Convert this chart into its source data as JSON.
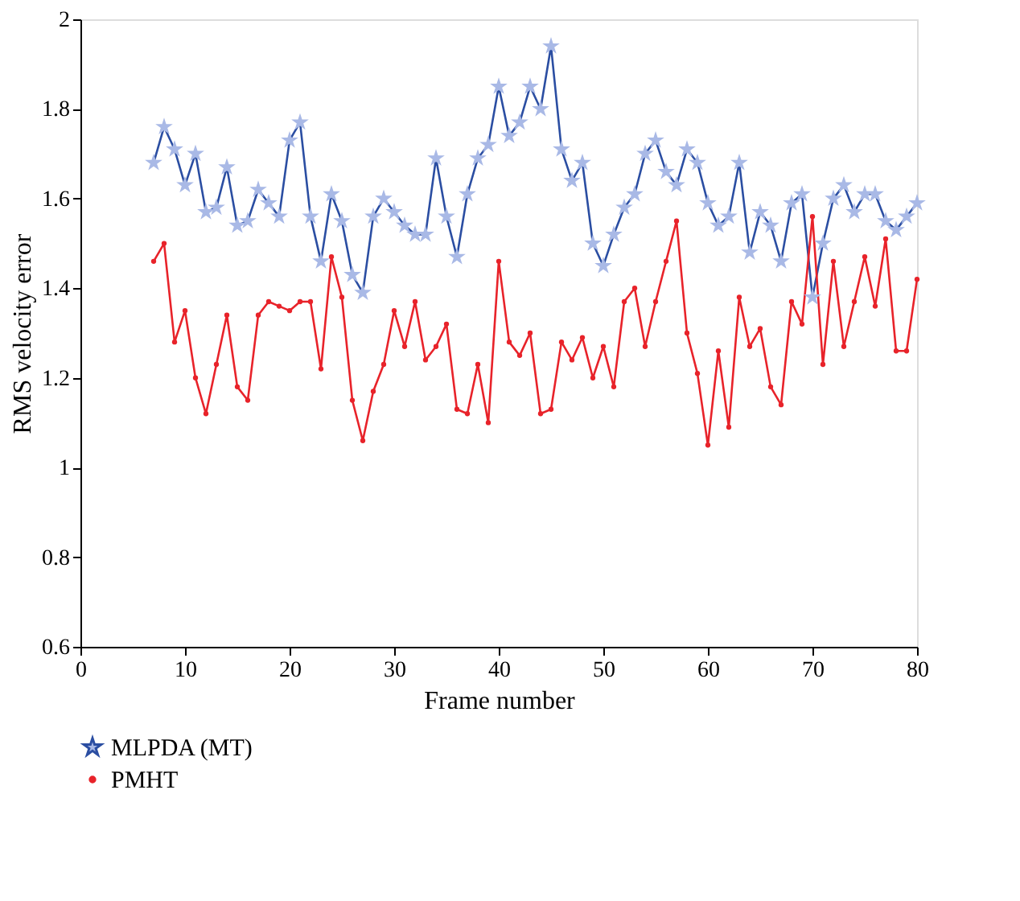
{
  "chart_data": {
    "type": "line",
    "xlabel": "Frame number",
    "ylabel": "RMS velocity error",
    "xlim": [
      0,
      80
    ],
    "xticks": [
      0,
      10,
      20,
      30,
      40,
      50,
      60,
      70,
      80
    ],
    "ylim": [
      0.6,
      2
    ],
    "yticks": [
      0.6,
      0.8,
      {
        "value": 1,
        "label": "1"
      },
      1.2,
      1.4,
      1.6,
      1.8,
      {
        "value": 2,
        "label": "2"
      }
    ],
    "grid": false,
    "legend": "bottom left",
    "x": [
      7,
      8,
      9,
      10,
      11,
      12,
      13,
      14,
      15,
      16,
      17,
      18,
      19,
      20,
      21,
      22,
      23,
      24,
      25,
      26,
      27,
      28,
      29,
      30,
      31,
      32,
      33,
      34,
      35,
      36,
      37,
      38,
      39,
      40,
      41,
      42,
      43,
      44,
      45,
      46,
      47,
      48,
      49,
      50,
      51,
      52,
      53,
      54,
      55,
      56,
      57,
      58,
      59,
      60,
      61,
      62,
      63,
      64,
      65,
      66,
      67,
      68,
      69,
      70,
      71,
      72,
      73,
      74,
      75,
      76,
      77,
      78,
      79,
      80
    ],
    "series": [
      {
        "name": "MLPDA (MT)",
        "color": "#2b4ea2",
        "marker": "star",
        "values": [
          1.68,
          1.76,
          1.71,
          1.63,
          1.7,
          1.57,
          1.58,
          1.67,
          1.54,
          1.55,
          1.62,
          1.59,
          1.56,
          1.73,
          1.77,
          1.56,
          1.46,
          1.61,
          1.55,
          1.43,
          1.39,
          1.56,
          1.6,
          1.57,
          1.54,
          1.52,
          1.52,
          1.69,
          1.56,
          1.47,
          1.61,
          1.69,
          1.72,
          1.85,
          1.74,
          1.77,
          1.85,
          1.8,
          1.94,
          1.71,
          1.64,
          1.68,
          1.5,
          1.45,
          1.52,
          1.58,
          1.61,
          1.7,
          1.73,
          1.66,
          1.63,
          1.71,
          1.68,
          1.59,
          1.54,
          1.56,
          1.68,
          1.48,
          1.57,
          1.54,
          1.46,
          1.59,
          1.61,
          1.38,
          1.5,
          1.6,
          1.63,
          1.57,
          1.61,
          1.61,
          1.55,
          1.53,
          1.56,
          1.59
        ]
      },
      {
        "name": "PMHT",
        "color": "#e8232a",
        "marker": "circle",
        "values": [
          1.46,
          1.5,
          1.28,
          1.35,
          1.2,
          1.12,
          1.23,
          1.34,
          1.18,
          1.15,
          1.34,
          1.37,
          1.36,
          1.35,
          1.37,
          1.37,
          1.22,
          1.47,
          1.38,
          1.15,
          1.06,
          1.17,
          1.23,
          1.35,
          1.27,
          1.37,
          1.24,
          1.27,
          1.32,
          1.13,
          1.12,
          1.23,
          1.1,
          1.46,
          1.28,
          1.25,
          1.3,
          1.12,
          1.13,
          1.28,
          1.24,
          1.29,
          1.2,
          1.27,
          1.18,
          1.37,
          1.4,
          1.27,
          1.37,
          1.46,
          1.55,
          1.3,
          1.21,
          1.05,
          1.26,
          1.09,
          1.38,
          1.27,
          1.31,
          1.18,
          1.14,
          1.37,
          1.32,
          1.56,
          1.23,
          1.46,
          1.27,
          1.37,
          1.47,
          1.36,
          1.51,
          1.26,
          1.26,
          1.42
        ]
      }
    ]
  }
}
